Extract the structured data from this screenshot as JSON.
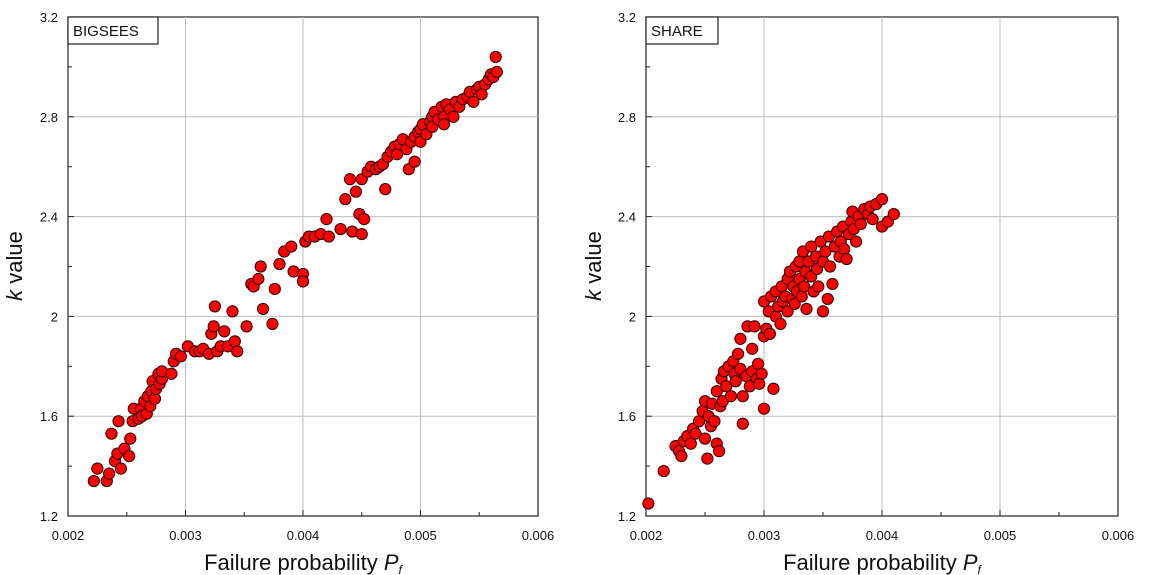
{
  "figure": {
    "panels": [
      {
        "tag": "BIGSEES",
        "xlabel_main": "Failure probability ",
        "xlabel_sym": "P",
        "xlabel_sub": "f",
        "ylabel_italic": "k",
        "ylabel_rest": " value"
      },
      {
        "tag": "SHARE",
        "xlabel_main": "Failure probability ",
        "xlabel_sym": "P",
        "xlabel_sub": "f",
        "ylabel_italic": "k",
        "ylabel_rest": " value"
      }
    ]
  },
  "chart_data": [
    {
      "type": "scatter",
      "title": "",
      "annotation": "BIGSEES",
      "xlabel": "Failure probability Pf",
      "ylabel": "k value",
      "xlim": [
        0.002,
        0.006
      ],
      "ylim": [
        1.2,
        3.2
      ],
      "xticks": [
        "0.002",
        "0.003",
        "0.004",
        "0.005",
        "0.006"
      ],
      "yticks": [
        "1.2",
        "1.6",
        "2",
        "2.4",
        "2.8",
        "3.2"
      ],
      "grid": true,
      "marker_color": "#ff0000",
      "points": [
        [
          0.00222,
          1.34
        ],
        [
          0.00225,
          1.39
        ],
        [
          0.00233,
          1.34
        ],
        [
          0.00235,
          1.37
        ],
        [
          0.00237,
          1.53
        ],
        [
          0.0024,
          1.42
        ],
        [
          0.00242,
          1.45
        ],
        [
          0.00243,
          1.58
        ],
        [
          0.00245,
          1.39
        ],
        [
          0.00248,
          1.47
        ],
        [
          0.00252,
          1.44
        ],
        [
          0.00253,
          1.51
        ],
        [
          0.00255,
          1.58
        ],
        [
          0.00256,
          1.63
        ],
        [
          0.0026,
          1.59
        ],
        [
          0.00262,
          1.63
        ],
        [
          0.00263,
          1.6
        ],
        [
          0.00265,
          1.66
        ],
        [
          0.00267,
          1.61
        ],
        [
          0.00268,
          1.68
        ],
        [
          0.0027,
          1.64
        ],
        [
          0.00271,
          1.7
        ],
        [
          0.00272,
          1.74
        ],
        [
          0.00274,
          1.67
        ],
        [
          0.00275,
          1.71
        ],
        [
          0.00277,
          1.77
        ],
        [
          0.00278,
          1.73
        ],
        [
          0.0028,
          1.75
        ],
        [
          0.0028,
          1.78
        ],
        [
          0.00288,
          1.77
        ],
        [
          0.0029,
          1.82
        ],
        [
          0.00292,
          1.85
        ],
        [
          0.00296,
          1.84
        ],
        [
          0.00302,
          1.88
        ],
        [
          0.00308,
          1.86
        ],
        [
          0.00312,
          1.86
        ],
        [
          0.00315,
          1.87
        ],
        [
          0.0032,
          1.85
        ],
        [
          0.00322,
          1.93
        ],
        [
          0.00324,
          1.96
        ],
        [
          0.00325,
          2.04
        ],
        [
          0.00327,
          1.86
        ],
        [
          0.0033,
          1.88
        ],
        [
          0.00333,
          1.94
        ],
        [
          0.00336,
          1.88
        ],
        [
          0.0034,
          2.02
        ],
        [
          0.00342,
          1.9
        ],
        [
          0.00344,
          1.86
        ],
        [
          0.00352,
          1.96
        ],
        [
          0.00356,
          2.13
        ],
        [
          0.00358,
          2.12
        ],
        [
          0.00362,
          2.15
        ],
        [
          0.00364,
          2.2
        ],
        [
          0.00366,
          2.03
        ],
        [
          0.00374,
          1.97
        ],
        [
          0.00376,
          2.11
        ],
        [
          0.0038,
          2.21
        ],
        [
          0.00384,
          2.26
        ],
        [
          0.0039,
          2.28
        ],
        [
          0.00392,
          2.18
        ],
        [
          0.004,
          2.17
        ],
        [
          0.004,
          2.14
        ],
        [
          0.00402,
          2.3
        ],
        [
          0.00405,
          2.32
        ],
        [
          0.0041,
          2.32
        ],
        [
          0.00415,
          2.33
        ],
        [
          0.0042,
          2.39
        ],
        [
          0.00422,
          2.32
        ],
        [
          0.00432,
          2.35
        ],
        [
          0.00436,
          2.47
        ],
        [
          0.0044,
          2.55
        ],
        [
          0.00442,
          2.34
        ],
        [
          0.00445,
          2.5
        ],
        [
          0.00448,
          2.41
        ],
        [
          0.0045,
          2.33
        ],
        [
          0.0045,
          2.55
        ],
        [
          0.00452,
          2.39
        ],
        [
          0.00455,
          2.58
        ],
        [
          0.00458,
          2.6
        ],
        [
          0.00462,
          2.59
        ],
        [
          0.00465,
          2.6
        ],
        [
          0.00468,
          2.61
        ],
        [
          0.0047,
          2.51
        ],
        [
          0.00472,
          2.64
        ],
        [
          0.00475,
          2.66
        ],
        [
          0.00478,
          2.68
        ],
        [
          0.0048,
          2.65
        ],
        [
          0.00482,
          2.69
        ],
        [
          0.00485,
          2.71
        ],
        [
          0.00488,
          2.67
        ],
        [
          0.0049,
          2.59
        ],
        [
          0.00492,
          2.7
        ],
        [
          0.00495,
          2.62
        ],
        [
          0.00495,
          2.72
        ],
        [
          0.00498,
          2.74
        ],
        [
          0.005,
          2.7
        ],
        [
          0.005,
          2.75
        ],
        [
          0.00502,
          2.77
        ],
        [
          0.00505,
          2.73
        ],
        [
          0.00508,
          2.78
        ],
        [
          0.0051,
          2.8
        ],
        [
          0.0051,
          2.76
        ],
        [
          0.00512,
          2.82
        ],
        [
          0.00515,
          2.79
        ],
        [
          0.00518,
          2.84
        ],
        [
          0.0052,
          2.8
        ],
        [
          0.0052,
          2.77
        ],
        [
          0.00522,
          2.85
        ],
        [
          0.00525,
          2.83
        ],
        [
          0.00528,
          2.8
        ],
        [
          0.0053,
          2.86
        ],
        [
          0.00533,
          2.84
        ],
        [
          0.00536,
          2.87
        ],
        [
          0.0054,
          2.88
        ],
        [
          0.00542,
          2.9
        ],
        [
          0.00545,
          2.86
        ],
        [
          0.00548,
          2.91
        ],
        [
          0.0055,
          2.92
        ],
        [
          0.00552,
          2.89
        ],
        [
          0.00555,
          2.93
        ],
        [
          0.00558,
          2.95
        ],
        [
          0.0056,
          2.97
        ],
        [
          0.00562,
          2.96
        ],
        [
          0.00564,
          3.04
        ],
        [
          0.00565,
          2.98
        ]
      ]
    },
    {
      "type": "scatter",
      "title": "",
      "annotation": "SHARE",
      "xlabel": "Failure probability Pf",
      "ylabel": "k value",
      "xlim": [
        0.002,
        0.006
      ],
      "ylim": [
        1.2,
        3.2
      ],
      "xticks": [
        "0.002",
        "0.003",
        "0.004",
        "0.005",
        "0.006"
      ],
      "yticks": [
        "1.2",
        "1.6",
        "2",
        "2.4",
        "2.8",
        "3.2"
      ],
      "grid": true,
      "marker_color": "#ff0000",
      "points": [
        [
          0.00202,
          1.25
        ],
        [
          0.00215,
          1.38
        ],
        [
          0.00225,
          1.48
        ],
        [
          0.00228,
          1.46
        ],
        [
          0.0023,
          1.44
        ],
        [
          0.00232,
          1.5
        ],
        [
          0.00235,
          1.52
        ],
        [
          0.00238,
          1.49
        ],
        [
          0.0024,
          1.55
        ],
        [
          0.00242,
          1.53
        ],
        [
          0.00245,
          1.58
        ],
        [
          0.00248,
          1.62
        ],
        [
          0.0025,
          1.51
        ],
        [
          0.0025,
          1.66
        ],
        [
          0.00252,
          1.43
        ],
        [
          0.00253,
          1.6
        ],
        [
          0.00255,
          1.56
        ],
        [
          0.00256,
          1.65
        ],
        [
          0.00258,
          1.58
        ],
        [
          0.0026,
          1.7
        ],
        [
          0.0026,
          1.49
        ],
        [
          0.00262,
          1.46
        ],
        [
          0.00263,
          1.64
        ],
        [
          0.00264,
          1.75
        ],
        [
          0.00265,
          1.66
        ],
        [
          0.00266,
          1.78
        ],
        [
          0.00268,
          1.72
        ],
        [
          0.0027,
          1.8
        ],
        [
          0.00272,
          1.68
        ],
        [
          0.00274,
          1.82
        ],
        [
          0.00275,
          1.77
        ],
        [
          0.00276,
          1.74
        ],
        [
          0.00278,
          1.85
        ],
        [
          0.0028,
          1.79
        ],
        [
          0.0028,
          1.91
        ],
        [
          0.00282,
          1.57
        ],
        [
          0.00282,
          1.68
        ],
        [
          0.00285,
          1.76
        ],
        [
          0.00286,
          1.96
        ],
        [
          0.00288,
          1.72
        ],
        [
          0.0029,
          1.78
        ],
        [
          0.0029,
          1.87
        ],
        [
          0.00292,
          1.96
        ],
        [
          0.00294,
          1.75
        ],
        [
          0.00295,
          1.81
        ],
        [
          0.00296,
          1.73
        ],
        [
          0.00298,
          1.77
        ],
        [
          0.003,
          1.63
        ],
        [
          0.003,
          1.92
        ],
        [
          0.003,
          2.06
        ],
        [
          0.00302,
          1.95
        ],
        [
          0.00304,
          2.02
        ],
        [
          0.00305,
          1.93
        ],
        [
          0.00306,
          2.08
        ],
        [
          0.00308,
          1.71
        ],
        [
          0.0031,
          2.0
        ],
        [
          0.0031,
          2.1
        ],
        [
          0.00312,
          2.04
        ],
        [
          0.00314,
          1.97
        ],
        [
          0.00315,
          2.12
        ],
        [
          0.00316,
          2.06
        ],
        [
          0.00318,
          2.08
        ],
        [
          0.0032,
          2.15
        ],
        [
          0.0032,
          2.02
        ],
        [
          0.00322,
          2.18
        ],
        [
          0.00324,
          2.07
        ],
        [
          0.00325,
          2.12
        ],
        [
          0.00326,
          2.05
        ],
        [
          0.00327,
          2.2
        ],
        [
          0.00328,
          2.1
        ],
        [
          0.0033,
          2.22
        ],
        [
          0.0033,
          2.15
        ],
        [
          0.00332,
          2.08
        ],
        [
          0.00333,
          2.26
        ],
        [
          0.00334,
          2.12
        ],
        [
          0.00335,
          2.18
        ],
        [
          0.00336,
          2.03
        ],
        [
          0.00338,
          2.22
        ],
        [
          0.0034,
          2.16
        ],
        [
          0.0034,
          2.28
        ],
        [
          0.00342,
          2.1
        ],
        [
          0.00344,
          2.24
        ],
        [
          0.00345,
          2.19
        ],
        [
          0.00346,
          2.12
        ],
        [
          0.00348,
          2.3
        ],
        [
          0.0035,
          2.02
        ],
        [
          0.0035,
          2.22
        ],
        [
          0.00352,
          2.26
        ],
        [
          0.00354,
          2.07
        ],
        [
          0.00355,
          2.32
        ],
        [
          0.00356,
          2.2
        ],
        [
          0.00358,
          2.13
        ],
        [
          0.0036,
          2.28
        ],
        [
          0.00362,
          2.34
        ],
        [
          0.00364,
          2.24
        ],
        [
          0.00365,
          2.3
        ],
        [
          0.00367,
          2.36
        ],
        [
          0.00368,
          2.27
        ],
        [
          0.0037,
          2.23
        ],
        [
          0.00372,
          2.33
        ],
        [
          0.00374,
          2.38
        ],
        [
          0.00375,
          2.42
        ],
        [
          0.00376,
          2.35
        ],
        [
          0.00378,
          2.3
        ],
        [
          0.0038,
          2.4
        ],
        [
          0.00382,
          2.37
        ],
        [
          0.00385,
          2.43
        ],
        [
          0.00388,
          2.41
        ],
        [
          0.0039,
          2.44
        ],
        [
          0.00392,
          2.39
        ],
        [
          0.00395,
          2.45
        ],
        [
          0.004,
          2.47
        ],
        [
          0.004,
          2.36
        ],
        [
          0.00405,
          2.38
        ],
        [
          0.0041,
          2.41
        ]
      ]
    }
  ]
}
